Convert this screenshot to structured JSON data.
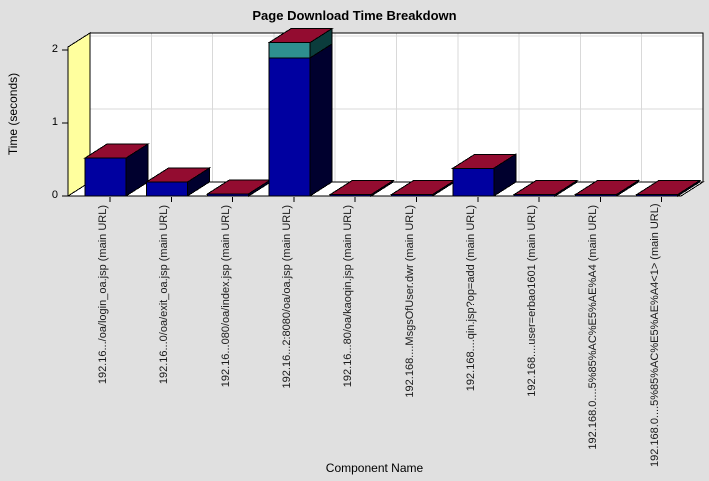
{
  "window": {
    "background": "#E0E0E0"
  },
  "chart_data": {
    "type": "bar",
    "projection": "3d",
    "title": "Page Download Time Breakdown",
    "xlabel": "Component Name",
    "ylabel": "Time (seconds)",
    "y_ticks": [
      0,
      1,
      2
    ],
    "ylim": [
      0,
      2.05
    ],
    "grid": true,
    "legend_position": "none",
    "categories": [
      "192.16.../oa/login_oa.jsp (main URL)",
      "192.16...0/oa/exit_oa.jsp (main URL)",
      "192.16...080/oa/index.jsp (main URL)",
      "192.16...2:8080/oa/oa.jsp (main URL)",
      "192.16...80/oa/kaoqin.jsp (main URL)",
      "192.168....MsgsOfUser.dwr (main URL)",
      "192.168....qin.jsp?op=add (main URL)",
      "192.168....user=erbao1601 (main URL)",
      "192.168.0....5%85%AC%E5%AE%A4 (main URL)",
      "192.168.0....5%85%AC%E5%AE%A4<1> (main URL)"
    ],
    "series": [
      {
        "name": "download-time-blue",
        "color": "#0000A0",
        "side_color": "#00002E",
        "values": [
          0.52,
          0.19,
          0.03,
          1.89,
          0.02,
          0.02,
          0.38,
          0.02,
          0.02,
          0.02
        ]
      },
      {
        "name": "download-time-teal",
        "color": "#2E8F8F",
        "side_color": "#0B3C3C",
        "values": [
          0,
          0,
          0,
          0.21,
          0,
          0,
          0,
          0,
          0,
          0
        ]
      }
    ],
    "bar_cap_color": "#930C30",
    "colors": {
      "left_wall": "#FFFF9E",
      "back_wall": "#FFFFFF",
      "floor": "#FFFFFF",
      "gridline": "#D9D9D9",
      "frame": "#000000"
    }
  }
}
